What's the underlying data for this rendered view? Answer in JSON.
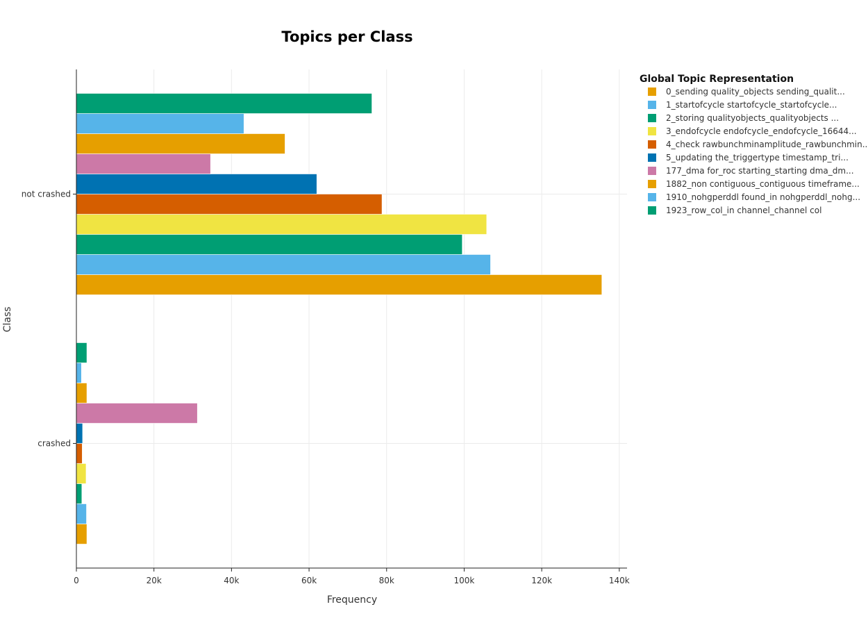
{
  "chart_data": {
    "type": "bar",
    "orientation": "horizontal",
    "title": "Topics per Class",
    "xlabel": "Frequency",
    "ylabel": "Class",
    "xlim": [
      0,
      142000
    ],
    "x_ticks": [
      0,
      20000,
      40000,
      60000,
      80000,
      100000,
      120000,
      140000
    ],
    "x_tick_labels": [
      "0",
      "20k",
      "40k",
      "60k",
      "80k",
      "100k",
      "120k",
      "140k"
    ],
    "categories": [
      "crashed",
      "not crashed"
    ],
    "grid": true,
    "legend_title": "Global Topic Representation",
    "legend_position": "right",
    "series": [
      {
        "name": "0_sending quality_objects sending_qualit...",
        "color": "#E69F00",
        "values": [
          2700,
          135500
        ]
      },
      {
        "name": "1_startofcycle startofcycle_startofcycle...",
        "color": "#56B4E9",
        "values": [
          2600,
          106800
        ]
      },
      {
        "name": "2_storing qualityobjects_qualityobjects ...",
        "color": "#009E73",
        "values": [
          1400,
          99500
        ]
      },
      {
        "name": "3_endofcycle endofcycle_endofcycle_16644...",
        "color": "#F0E442",
        "values": [
          2500,
          105800
        ]
      },
      {
        "name": "4_check rawbunchminamplitude_rawbunchmin...",
        "color": "#D55E00",
        "values": [
          1500,
          78800
        ]
      },
      {
        "name": "5_updating the_triggertype timestamp_tri...",
        "color": "#0072B2",
        "values": [
          1600,
          62000
        ]
      },
      {
        "name": "177_dma for_roc starting_starting dma_dm...",
        "color": "#CC79A7",
        "values": [
          31200,
          34600
        ]
      },
      {
        "name": "1882_non contiguous_contiguous timeframe...",
        "color": "#E69F00",
        "values": [
          2700,
          53800
        ]
      },
      {
        "name": "1910_nohgperddl found_in nohgperddl_nohg...",
        "color": "#56B4E9",
        "values": [
          1300,
          43200
        ]
      },
      {
        "name": "1923_row_col_in channel_channel col",
        "color": "#009E73",
        "values": [
          2700,
          76200
        ]
      }
    ]
  }
}
